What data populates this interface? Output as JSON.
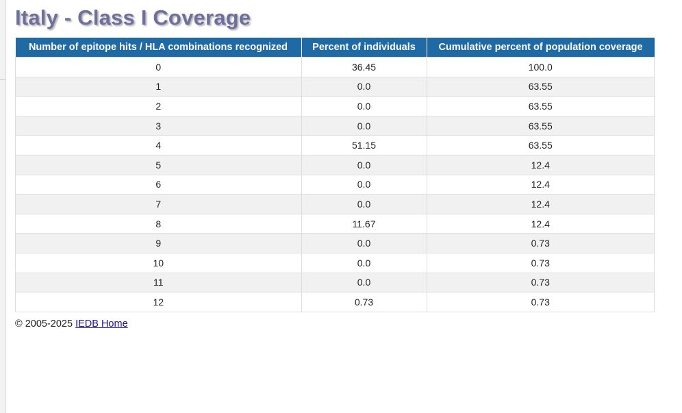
{
  "page": {
    "title": "Italy - Class I Coverage"
  },
  "table": {
    "headers": [
      "Number of epitope hits / HLA combinations recognized",
      "Percent of individuals",
      "Cumulative percent of population coverage"
    ],
    "rows": [
      [
        "0",
        "36.45",
        "100.0"
      ],
      [
        "1",
        "0.0",
        "63.55"
      ],
      [
        "2",
        "0.0",
        "63.55"
      ],
      [
        "3",
        "0.0",
        "63.55"
      ],
      [
        "4",
        "51.15",
        "63.55"
      ],
      [
        "5",
        "0.0",
        "12.4"
      ],
      [
        "6",
        "0.0",
        "12.4"
      ],
      [
        "7",
        "0.0",
        "12.4"
      ],
      [
        "8",
        "11.67",
        "12.4"
      ],
      [
        "9",
        "0.0",
        "0.73"
      ],
      [
        "10",
        "0.0",
        "0.73"
      ],
      [
        "11",
        "0.0",
        "0.73"
      ],
      [
        "12",
        "0.73",
        "0.73"
      ]
    ]
  },
  "footer": {
    "copyright": "© 2005-2025",
    "link_label": "IEDB Home"
  },
  "colors": {
    "header_bg": "#1f6aa5",
    "title": "#6f6f9e",
    "row_alt": "#f1f1f1",
    "link": "#1a0dab"
  }
}
